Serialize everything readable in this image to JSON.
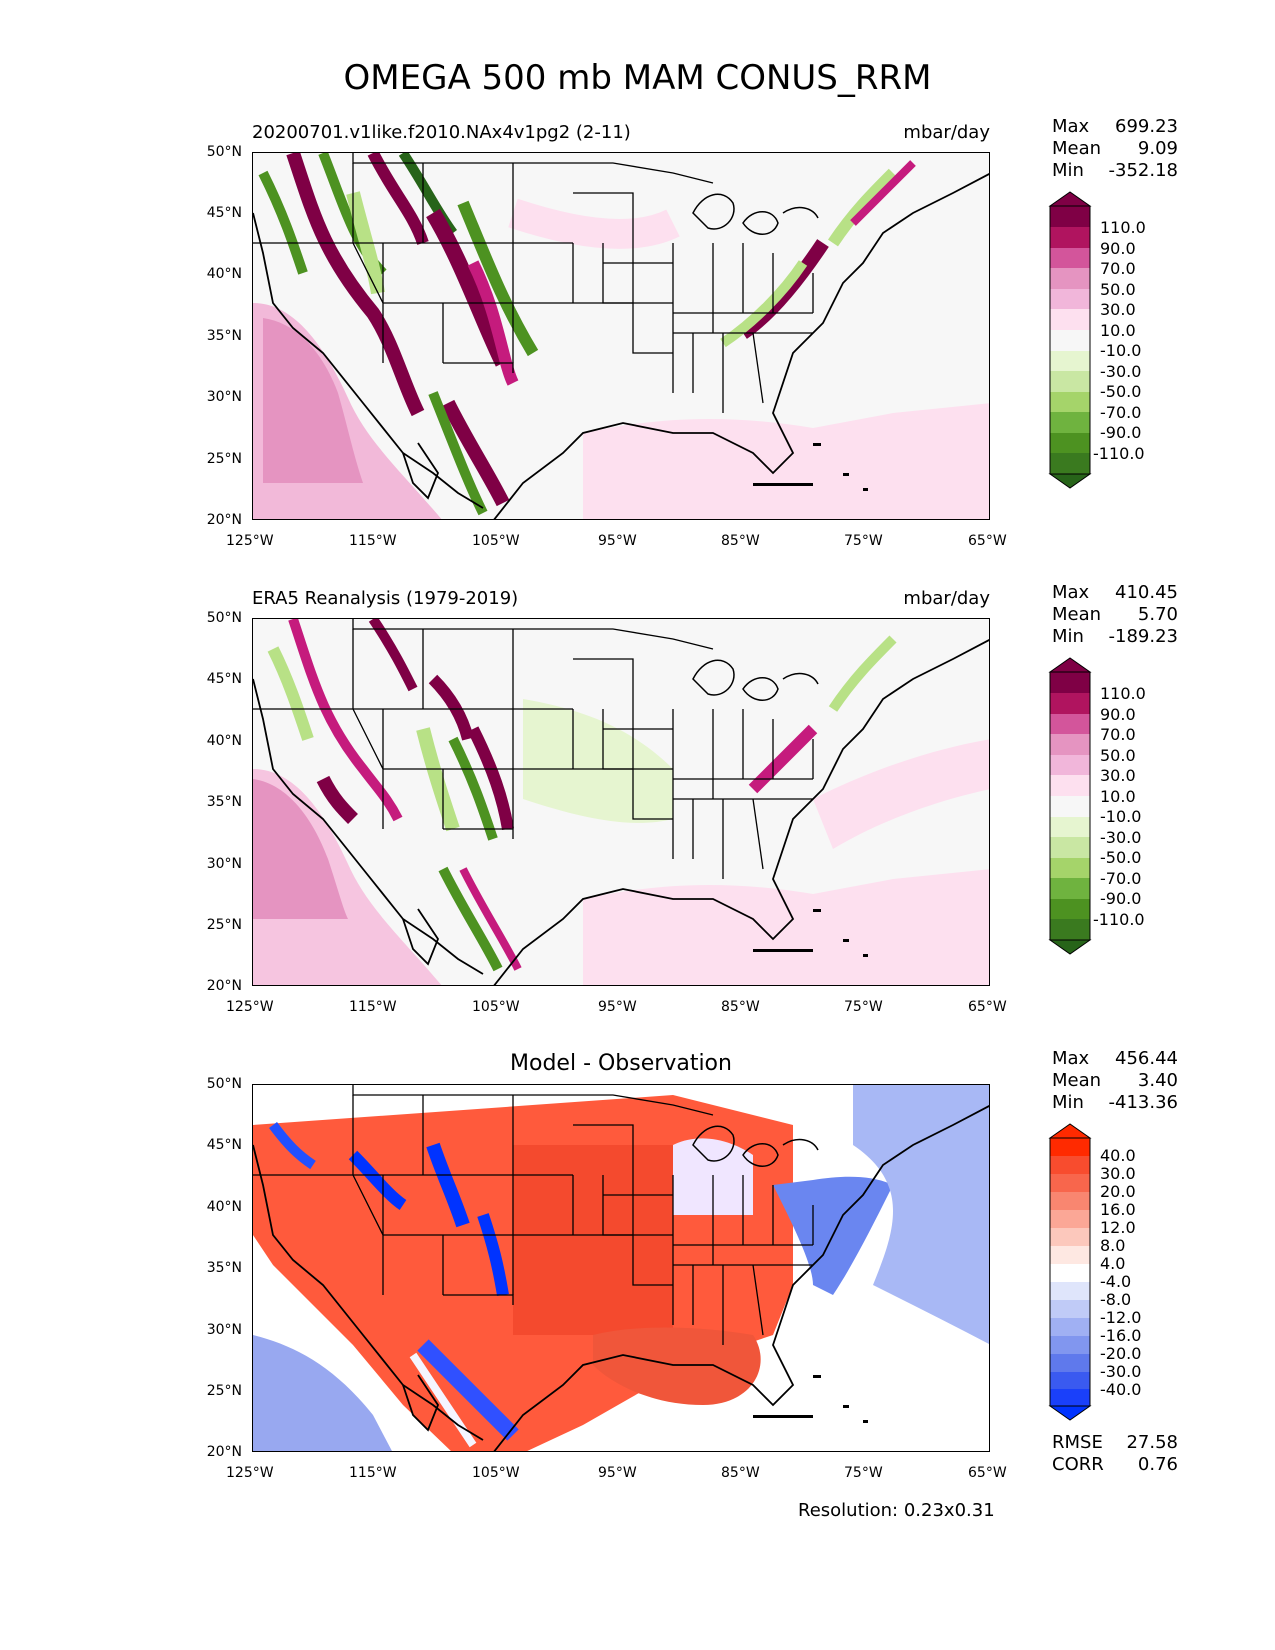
{
  "title": "OMEGA 500 mb MAM CONUS_RRM",
  "resolution": "Resolution: 0.23x0.31",
  "colors": {
    "pos_dark": "#7f0045",
    "pos_mid": "#c51b7d",
    "pos_light": "#f1b6da",
    "pos_pale": "#fde0ef",
    "neg_pale": "#e6f5d0",
    "neg_light": "#b8e186",
    "neg_mid": "#4d9221",
    "neg_dark": "#276419",
    "bg": "#f7f7f7",
    "diff_red": "#ff2a00",
    "diff_blue": "#0033ff"
  },
  "chart_data": [
    {
      "type": "heatmap",
      "panel": "model",
      "left_title": "20200701.v1like.f2010.NAx4v1pg2 (2-11)",
      "units": "mbar/day",
      "stats": [
        {
          "label": "Max",
          "value": "699.23"
        },
        {
          "label": "Mean",
          "value": "9.09"
        },
        {
          "label": "Min",
          "value": "-352.18"
        }
      ],
      "colorbar_ticks": [
        "110.0",
        "90.0",
        "70.0",
        "50.0",
        "30.0",
        "10.0",
        "-10.0",
        "-30.0",
        "-50.0",
        "-70.0",
        "-90.0",
        "-110.0"
      ],
      "xticks": [
        "125°W",
        "115°W",
        "105°W",
        "95°W",
        "85°W",
        "75°W",
        "65°W"
      ],
      "yticks": [
        "50°N",
        "45°N",
        "40°N",
        "35°N",
        "30°N",
        "25°N",
        "20°N"
      ],
      "xlim": [
        -125,
        -65
      ],
      "ylim": [
        20,
        50
      ]
    },
    {
      "type": "heatmap",
      "panel": "observation",
      "left_title": "ERA5 Reanalysis (1979-2019)",
      "units": "mbar/day",
      "stats": [
        {
          "label": "Max",
          "value": "410.45"
        },
        {
          "label": "Mean",
          "value": "5.70"
        },
        {
          "label": "Min",
          "value": "-189.23"
        }
      ],
      "colorbar_ticks": [
        "110.0",
        "90.0",
        "70.0",
        "50.0",
        "30.0",
        "10.0",
        "-10.0",
        "-30.0",
        "-50.0",
        "-70.0",
        "-90.0",
        "-110.0"
      ],
      "xticks": [
        "125°W",
        "115°W",
        "105°W",
        "95°W",
        "85°W",
        "75°W",
        "65°W"
      ],
      "yticks": [
        "50°N",
        "45°N",
        "40°N",
        "35°N",
        "30°N",
        "25°N",
        "20°N"
      ],
      "xlim": [
        -125,
        -65
      ],
      "ylim": [
        20,
        50
      ]
    },
    {
      "type": "heatmap",
      "panel": "difference",
      "center_title": "Model - Observation",
      "stats": [
        {
          "label": "Max",
          "value": "456.44"
        },
        {
          "label": "Mean",
          "value": "3.40"
        },
        {
          "label": "Min",
          "value": "-413.36"
        }
      ],
      "extra_stats": [
        {
          "label": "RMSE",
          "value": "27.58"
        },
        {
          "label": "CORR",
          "value": "0.76"
        }
      ],
      "colorbar_ticks": [
        "40.0",
        "30.0",
        "20.0",
        "16.0",
        "12.0",
        "8.0",
        "4.0",
        "-4.0",
        "-8.0",
        "-12.0",
        "-16.0",
        "-20.0",
        "-30.0",
        "-40.0"
      ],
      "xticks": [
        "125°W",
        "115°W",
        "105°W",
        "95°W",
        "85°W",
        "75°W",
        "65°W"
      ],
      "yticks": [
        "50°N",
        "45°N",
        "40°N",
        "35°N",
        "30°N",
        "25°N",
        "20°N"
      ],
      "xlim": [
        -125,
        -65
      ],
      "ylim": [
        20,
        50
      ]
    }
  ]
}
